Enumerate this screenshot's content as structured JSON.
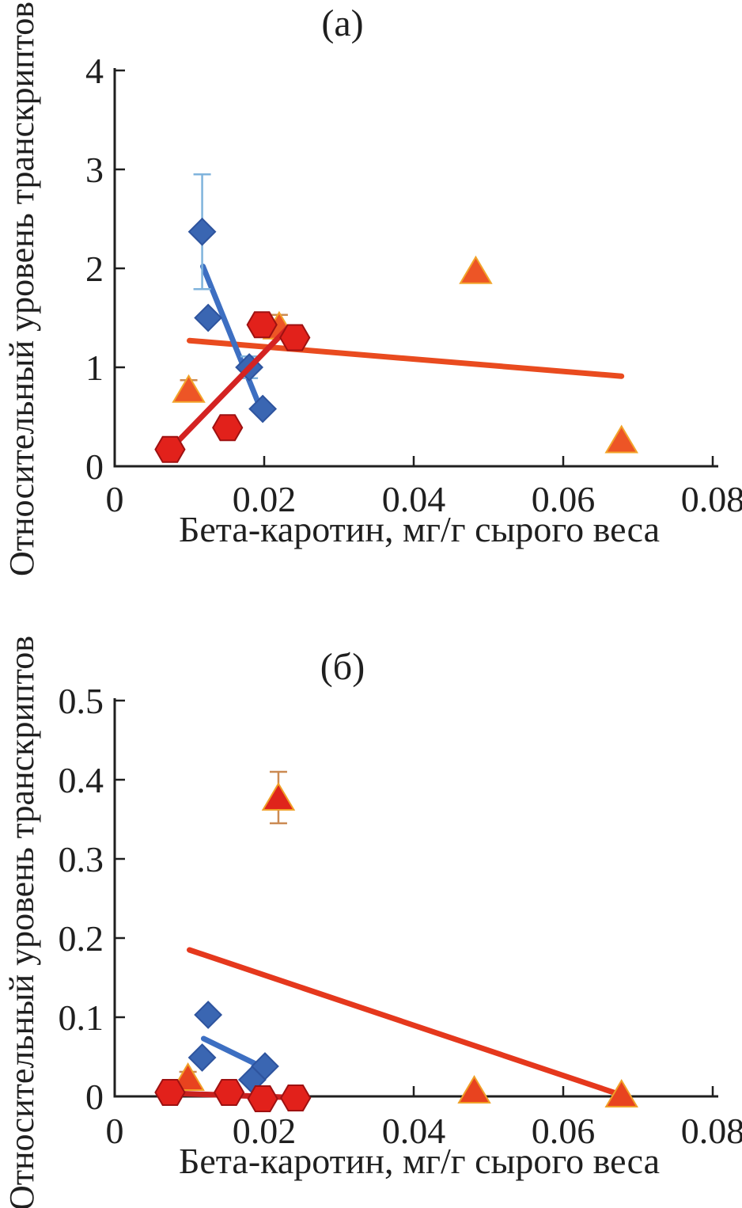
{
  "style": {
    "background": "#ffffff",
    "axis_color": "#1f1f1f",
    "tick_label_size": 46
  },
  "chart_data": [
    {
      "type": "scatter",
      "panel": "a",
      "title": "(а)",
      "xlabel": "Бета-каротин, мг/г сырого веса",
      "ylabel": "Относительный уровень транскриптов",
      "xlim": [
        0,
        0.08
      ],
      "ylim": [
        0,
        4
      ],
      "xticks": [
        0,
        0.02,
        0.04,
        0.06,
        0.08
      ],
      "xtick_labels": [
        "0",
        "0.02",
        "0.04",
        "0.06",
        "0.08"
      ],
      "yticks": [
        0,
        1,
        2,
        3,
        4
      ],
      "ytick_labels": [
        "0",
        "1",
        "2",
        "3",
        "4"
      ],
      "grid": false,
      "legend": "none",
      "series": [
        {
          "name": "orange-triangles",
          "marker": "triangle",
          "color": "#ED5526",
          "marker_edge": "#F2A42B",
          "error_color": "#CB8A52",
          "trend_color": "#E94B1F",
          "trend": [
            0.01,
            1.27,
            0.0678,
            0.91
          ],
          "points": [
            {
              "x": 0.0099,
              "y": 0.77,
              "err": 0.1
            },
            {
              "x": 0.022,
              "y": 1.41,
              "err": 0.12
            },
            {
              "x": 0.0483,
              "y": 1.97
            },
            {
              "x": 0.0678,
              "y": 0.26
            }
          ]
        },
        {
          "name": "blue-diamonds",
          "marker": "diamond",
          "color": "#3A66B2",
          "marker_edge": "#2E549E",
          "error_color": "#7FB3DC",
          "trend_color": "#3D6FC2",
          "trend": [
            0.0118,
            2.02,
            0.0199,
            0.51
          ],
          "points": [
            {
              "x": 0.0117,
              "y": 2.37,
              "err": 0.58
            },
            {
              "x": 0.0125,
              "y": 1.5
            },
            {
              "x": 0.018,
              "y": 1.0,
              "err": 0.11
            },
            {
              "x": 0.0198,
              "y": 0.58
            }
          ]
        },
        {
          "name": "red-hexagons",
          "marker": "hexagon",
          "color": "#E2211B",
          "marker_edge": "#9E1111",
          "error_color": "#E2211B",
          "trend_color": "#D42322",
          "trend": [
            0.0074,
            0.17,
            0.0232,
            1.4
          ],
          "points": [
            {
              "x": 0.0074,
              "y": 0.17
            },
            {
              "x": 0.0151,
              "y": 0.39
            },
            {
              "x": 0.0197,
              "y": 1.43
            },
            {
              "x": 0.0241,
              "y": 1.3
            }
          ]
        }
      ]
    },
    {
      "type": "scatter",
      "panel": "б",
      "title": "(б)",
      "xlabel": "Бета-каротин, мг/г сырого веса",
      "ylabel": "Относительный уровень транскриптов",
      "xlim": [
        0,
        0.08
      ],
      "ylim": [
        0,
        0.5
      ],
      "xticks": [
        0,
        0.02,
        0.04,
        0.06,
        0.08
      ],
      "xtick_labels": [
        "0",
        "0.02",
        "0.04",
        "0.06",
        "0.08"
      ],
      "yticks": [
        0,
        0.1,
        0.2,
        0.3,
        0.4,
        0.5
      ],
      "ytick_labels": [
        "0",
        "0.1",
        "0.2",
        "0.3",
        "0.4",
        "0.5"
      ],
      "grid": false,
      "legend": "none",
      "series": [
        {
          "name": "orange-triangles",
          "marker": "triangle",
          "color": "#E8431F",
          "marker_edge": "#F0A028",
          "error_color": "#CB8A52",
          "trend_color": "#E5381D",
          "trend": [
            0.01,
            0.185,
            0.068,
            0.001
          ],
          "points": [
            {
              "x": 0.0219,
              "y": 0.377,
              "err_up": 0.033,
              "err_down": 0.032,
              "color": "#DF241B"
            },
            {
              "x": 0.0098,
              "y": 0.023,
              "err": 0.008
            },
            {
              "x": 0.0481,
              "y": 0.007
            },
            {
              "x": 0.0678,
              "y": 0.002
            }
          ]
        },
        {
          "name": "blue-diamonds",
          "marker": "diamond",
          "color": "#3A66B2",
          "marker_edge": "#2E549E",
          "error_color": "#7FB3DC",
          "trend_color": "#3D6FC2",
          "trend": [
            0.0119,
            0.073,
            0.0206,
            0.033
          ],
          "points": [
            {
              "x": 0.0125,
              "y": 0.103
            },
            {
              "x": 0.0117,
              "y": 0.049
            },
            {
              "x": 0.0201,
              "y": 0.038
            },
            {
              "x": 0.0184,
              "y": 0.021
            }
          ]
        },
        {
          "name": "red-hexagons",
          "marker": "hexagon",
          "color": "#E2211B",
          "marker_edge": "#9E1111",
          "error_color": "#E2211B",
          "trend_color": "#C92220",
          "trend": [
            0.0076,
            0.004,
            0.0256,
            -0.002
          ],
          "points": [
            {
              "x": 0.0074,
              "y": 0.005
            },
            {
              "x": 0.0153,
              "y": 0.005
            },
            {
              "x": 0.0198,
              "y": -0.003
            },
            {
              "x": 0.0242,
              "y": -0.002
            }
          ]
        }
      ]
    }
  ]
}
